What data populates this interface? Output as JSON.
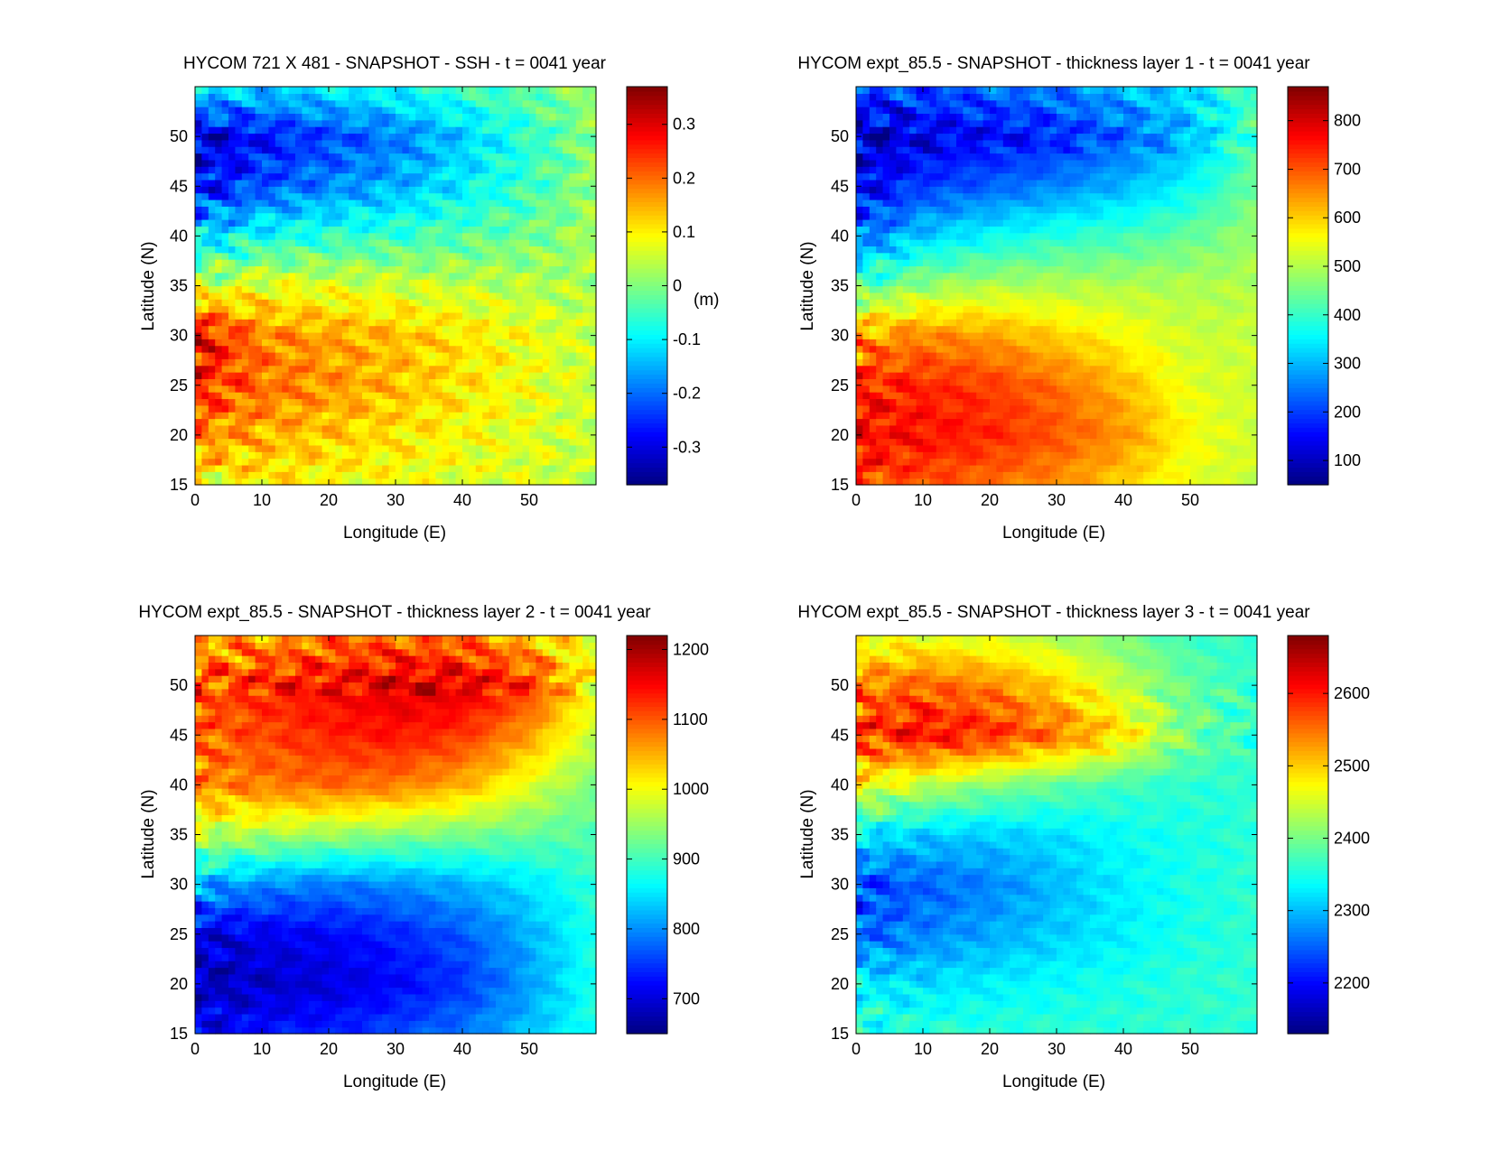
{
  "chart_data": [
    {
      "type": "heatmap",
      "title": "HYCOM 721 X 481 - SNAPSHOT - SSH - t = 0041 year",
      "xlabel": "Longitude (E)",
      "ylabel": "Latitude (N)",
      "xlim": [
        0,
        60
      ],
      "ylim": [
        15,
        55
      ],
      "xticks": [
        0,
        10,
        20,
        30,
        40,
        50
      ],
      "yticks": [
        15,
        20,
        25,
        30,
        35,
        40,
        45,
        50
      ],
      "colorbar": {
        "min": -0.37,
        "max": 0.37,
        "ticks": [
          -0.3,
          -0.2,
          -0.1,
          0,
          0.1,
          0.2,
          0.3
        ],
        "tick_labels": [
          "-0.3",
          "-0.2",
          "-0.1",
          "0",
          "0.1",
          "0.2",
          "0.3"
        ],
        "unit": "(m)"
      },
      "pattern": "ssh",
      "values_grid": {
        "lat": [
          15,
          20,
          25,
          30,
          35,
          40,
          45,
          50,
          55
        ],
        "lon": [
          0,
          10,
          20,
          30,
          40,
          50,
          60
        ],
        "z": [
          [
            0.08,
            0.1,
            0.09,
            0.08,
            0.07,
            0.06,
            0.05
          ],
          [
            0.18,
            0.15,
            0.13,
            0.11,
            0.09,
            0.07,
            0.05
          ],
          [
            0.25,
            0.2,
            0.17,
            0.14,
            0.11,
            0.08,
            0.05
          ],
          [
            0.3,
            0.18,
            0.16,
            0.14,
            0.11,
            0.08,
            0.05
          ],
          [
            0.05,
            0.08,
            0.07,
            0.06,
            0.05,
            0.04,
            0.03
          ],
          [
            -0.12,
            -0.08,
            -0.06,
            -0.05,
            -0.03,
            -0.01,
            0.03
          ],
          [
            -0.28,
            -0.22,
            -0.18,
            -0.15,
            -0.1,
            -0.05,
            0.02
          ],
          [
            -0.32,
            -0.27,
            -0.23,
            -0.19,
            -0.13,
            -0.06,
            0.01
          ],
          [
            -0.1,
            -0.12,
            -0.1,
            -0.08,
            -0.05,
            -0.02,
            0.02
          ]
        ]
      }
    },
    {
      "type": "heatmap",
      "title": "HYCOM expt_85.5 - SNAPSHOT - thickness layer 1 - t = 0041 year",
      "xlabel": "Longitude (E)",
      "ylabel": "Latitude (N)",
      "xlim": [
        0,
        60
      ],
      "ylim": [
        15,
        55
      ],
      "xticks": [
        0,
        10,
        20,
        30,
        40,
        50
      ],
      "yticks": [
        15,
        20,
        25,
        30,
        35,
        40,
        45,
        50
      ],
      "colorbar": {
        "min": 50,
        "max": 870,
        "ticks": [
          100,
          200,
          300,
          400,
          500,
          600,
          700,
          800
        ],
        "tick_labels": [
          "100",
          "200",
          "300",
          "400",
          "500",
          "600",
          "700",
          "800"
        ]
      },
      "pattern": "layer1",
      "values_grid": {
        "lat": [
          15,
          20,
          25,
          30,
          35,
          40,
          45,
          50,
          55
        ],
        "lon": [
          0,
          10,
          20,
          30,
          40,
          50,
          60
        ],
        "z": [
          [
            720,
            700,
            680,
            650,
            600,
            540,
            520
          ],
          [
            760,
            760,
            740,
            700,
            650,
            560,
            520
          ],
          [
            740,
            740,
            720,
            680,
            620,
            540,
            520
          ],
          [
            640,
            660,
            640,
            600,
            560,
            520,
            520
          ],
          [
            420,
            480,
            500,
            500,
            500,
            500,
            500
          ],
          [
            240,
            320,
            360,
            390,
            410,
            440,
            480
          ],
          [
            140,
            200,
            230,
            260,
            300,
            360,
            450
          ],
          [
            90,
            130,
            150,
            180,
            230,
            300,
            420
          ],
          [
            200,
            220,
            240,
            260,
            300,
            340,
            420
          ]
        ]
      }
    },
    {
      "type": "heatmap",
      "title": "HYCOM expt_85.5 - SNAPSHOT - thickness layer 2 - t = 0041 year",
      "xlabel": "Longitude (E)",
      "ylabel": "Latitude (N)",
      "xlim": [
        0,
        60
      ],
      "ylim": [
        15,
        55
      ],
      "xticks": [
        0,
        10,
        20,
        30,
        40,
        50
      ],
      "yticks": [
        15,
        20,
        25,
        30,
        35,
        40,
        45,
        50
      ],
      "colorbar": {
        "min": 650,
        "max": 1220,
        "ticks": [
          700,
          800,
          900,
          1000,
          1100,
          1200
        ],
        "tick_labels": [
          "700",
          "800",
          "900",
          "1000",
          "1100",
          "1200"
        ]
      },
      "pattern": "layer2",
      "values_grid": {
        "lat": [
          15,
          20,
          25,
          30,
          35,
          40,
          45,
          50,
          55
        ],
        "lon": [
          0,
          10,
          20,
          30,
          40,
          50,
          60
        ],
        "z": [
          [
            720,
            730,
            740,
            760,
            790,
            830,
            880
          ],
          [
            680,
            690,
            700,
            720,
            750,
            810,
            880
          ],
          [
            700,
            710,
            720,
            740,
            770,
            820,
            880
          ],
          [
            820,
            800,
            790,
            800,
            820,
            850,
            890
          ],
          [
            970,
            960,
            950,
            940,
            930,
            920,
            910
          ],
          [
            1070,
            1080,
            1090,
            1080,
            1050,
            990,
            930
          ],
          [
            1090,
            1110,
            1130,
            1140,
            1120,
            1060,
            970
          ],
          [
            1100,
            1130,
            1150,
            1170,
            1170,
            1120,
            1000
          ],
          [
            1040,
            1060,
            1080,
            1090,
            1080,
            1040,
            980
          ]
        ]
      }
    },
    {
      "type": "heatmap",
      "title": "HYCOM expt_85.5 - SNAPSHOT - thickness layer 3 - t = 0041 year",
      "xlabel": "Longitude (E)",
      "ylabel": "Latitude (N)",
      "xlim": [
        0,
        60
      ],
      "ylim": [
        15,
        55
      ],
      "xticks": [
        0,
        10,
        20,
        30,
        40,
        50
      ],
      "yticks": [
        15,
        20,
        25,
        30,
        35,
        40,
        45,
        50
      ],
      "colorbar": {
        "min": 2130,
        "max": 2680,
        "ticks": [
          2200,
          2300,
          2400,
          2500,
          2600
        ],
        "tick_labels": [
          "2200",
          "2300",
          "2400",
          "2500",
          "2600"
        ]
      },
      "pattern": "layer3",
      "values_grid": {
        "lat": [
          15,
          20,
          25,
          30,
          35,
          40,
          45,
          50,
          55
        ],
        "lon": [
          0,
          10,
          20,
          30,
          40,
          50,
          60
        ],
        "z": [
          [
            2360,
            2360,
            2360,
            2360,
            2360,
            2360,
            2360
          ],
          [
            2330,
            2320,
            2330,
            2340,
            2350,
            2360,
            2360
          ],
          [
            2250,
            2270,
            2290,
            2310,
            2330,
            2350,
            2360
          ],
          [
            2230,
            2250,
            2270,
            2300,
            2330,
            2350,
            2360
          ],
          [
            2330,
            2310,
            2310,
            2320,
            2340,
            2350,
            2360
          ],
          [
            2470,
            2440,
            2410,
            2390,
            2370,
            2360,
            2360
          ],
          [
            2580,
            2610,
            2590,
            2550,
            2490,
            2400,
            2360
          ],
          [
            2540,
            2560,
            2540,
            2500,
            2440,
            2390,
            2360
          ],
          [
            2450,
            2460,
            2450,
            2430,
            2400,
            2370,
            2360
          ]
        ]
      }
    }
  ]
}
